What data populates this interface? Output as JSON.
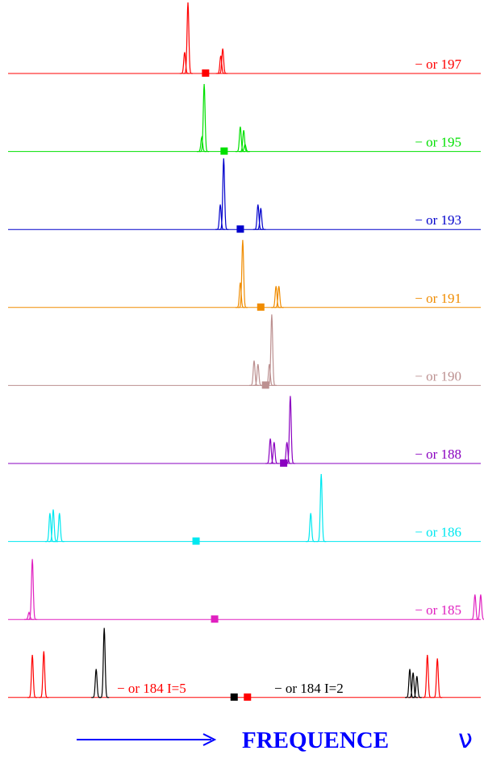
{
  "xlim": [
    0,
    100
  ],
  "rows": [
    {
      "traces": [
        {
          "label": "− or 197",
          "color": "#ff0000",
          "marker": 41.5,
          "peaks": [
            {
              "x": 37.1,
              "h": 0.3
            },
            {
              "x": 37.8,
              "h": 1.0
            },
            {
              "x": 44.7,
              "h": 0.25
            },
            {
              "x": 45.1,
              "h": 0.35
            }
          ]
        }
      ]
    },
    {
      "traces": [
        {
          "label": "− or 195",
          "color": "#00e000",
          "marker": 45.4,
          "peaks": [
            {
              "x": 40.7,
              "h": 0.2
            },
            {
              "x": 41.2,
              "h": 0.95
            },
            {
              "x": 48.8,
              "h": 0.35
            },
            {
              "x": 49.5,
              "h": 0.3
            },
            {
              "x": 49.8,
              "h": 0.1
            }
          ]
        }
      ]
    },
    {
      "traces": [
        {
          "label": "− or 193",
          "color": "#0000cc",
          "marker": 48.8,
          "peaks": [
            {
              "x": 44.6,
              "h": 0.35
            },
            {
              "x": 45.3,
              "h": 1.0
            },
            {
              "x": 52.5,
              "h": 0.35
            },
            {
              "x": 53.1,
              "h": 0.3
            }
          ]
        }
      ]
    },
    {
      "traces": [
        {
          "label": "− or 191",
          "color": "#f08c00",
          "marker": 53.1,
          "peaks": [
            {
              "x": 48.8,
              "h": 0.35
            },
            {
              "x": 49.3,
              "h": 0.95
            },
            {
              "x": 56.3,
              "h": 0.3
            },
            {
              "x": 56.9,
              "h": 0.3
            }
          ]
        }
      ]
    },
    {
      "traces": [
        {
          "label": "− or 190",
          "color": "#bc9090",
          "marker": 54.1,
          "peaks": [
            {
              "x": 51.7,
              "h": 0.35
            },
            {
              "x": 52.5,
              "h": 0.3
            },
            {
              "x": 54.9,
              "h": 0.3
            },
            {
              "x": 55.4,
              "h": 1.0
            }
          ]
        }
      ]
    },
    {
      "traces": [
        {
          "label": "− or 188",
          "color": "#8a00c0",
          "marker": 57.9,
          "peaks": [
            {
              "x": 55.1,
              "h": 0.35
            },
            {
              "x": 55.9,
              "h": 0.3
            },
            {
              "x": 58.6,
              "h": 0.3
            },
            {
              "x": 59.3,
              "h": 0.95
            }
          ]
        }
      ]
    },
    {
      "traces": [
        {
          "label": "− or 186",
          "color": "#00e8f0",
          "marker": 39.5,
          "peaks": [
            {
              "x": 8.8,
              "h": 0.4
            },
            {
              "x": 9.5,
              "h": 0.45
            },
            {
              "x": 10.8,
              "h": 0.4
            },
            {
              "x": 63.6,
              "h": 0.4
            },
            {
              "x": 65.8,
              "h": 0.95
            }
          ]
        }
      ]
    },
    {
      "traces": [
        {
          "label": "− or 185",
          "color": "#e020c0",
          "marker": 43.4,
          "peaks": [
            {
              "x": 4.4,
              "h": 0.1
            },
            {
              "x": 5.1,
              "h": 0.85
            },
            {
              "x": 98.1,
              "h": 0.35
            },
            {
              "x": 99.3,
              "h": 0.35
            }
          ]
        }
      ]
    },
    {
      "traces": [
        {
          "label": "− or 184 I=5",
          "color": "#ff0000",
          "marker": 50.3,
          "peaks": [
            {
              "x": 5.1,
              "h": 0.6
            },
            {
              "x": 7.5,
              "h": 0.65
            },
            {
              "x": 88.1,
              "h": 0.6
            },
            {
              "x": 90.2,
              "h": 0.55
            }
          ]
        },
        {
          "label": "− or 184  I=2",
          "color": "#000000",
          "marker": 47.5,
          "peaks": [
            {
              "x": 18.5,
              "h": 0.4
            },
            {
              "x": 20.2,
              "h": 0.98
            },
            {
              "x": 84.4,
              "h": 0.4
            },
            {
              "x": 85.1,
              "h": 0.35
            },
            {
              "x": 85.9,
              "h": 0.3
            }
          ]
        }
      ]
    }
  ],
  "footer": {
    "label": "FREQUENCE",
    "symbol": "ν"
  }
}
